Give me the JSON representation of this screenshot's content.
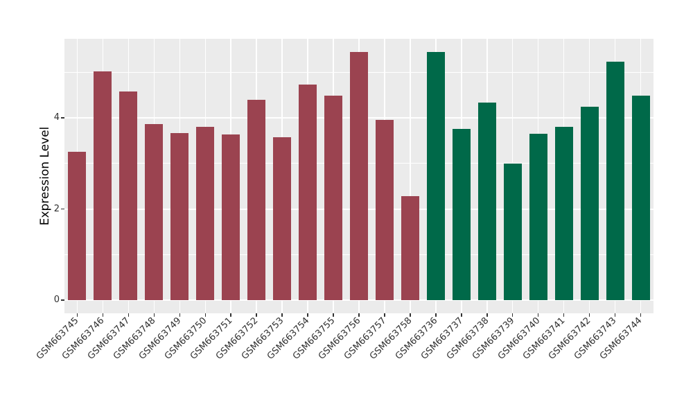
{
  "chart_data": {
    "type": "bar",
    "title": "",
    "xlabel": "",
    "ylabel": "Expression Level",
    "ylim": [
      0,
      5.72
    ],
    "yticks": [
      0,
      2,
      4
    ],
    "yticks_minor": [
      1,
      3,
      5
    ],
    "grid": true,
    "legend_position": "none",
    "categories": [
      "GSM663745",
      "GSM663746",
      "GSM663747",
      "GSM663748",
      "GSM663749",
      "GSM663750",
      "GSM663751",
      "GSM663752",
      "GSM663753",
      "GSM663754",
      "GSM663755",
      "GSM663756",
      "GSM663757",
      "GSM663758",
      "GSM663736",
      "GSM663737",
      "GSM663738",
      "GSM663739",
      "GSM663740",
      "GSM663741",
      "GSM663742",
      "GSM663743",
      "GSM663744"
    ],
    "values": [
      3.25,
      5.02,
      4.58,
      3.86,
      3.67,
      3.81,
      3.63,
      4.4,
      3.58,
      4.73,
      4.49,
      5.44,
      3.96,
      2.28,
      5.44,
      3.76,
      4.34,
      3.0,
      3.65,
      3.81,
      4.25,
      5.23,
      4.48
    ],
    "groups": [
      "red",
      "red",
      "red",
      "red",
      "red",
      "red",
      "red",
      "red",
      "red",
      "red",
      "red",
      "red",
      "red",
      "red",
      "green",
      "green",
      "green",
      "green",
      "green",
      "green",
      "green",
      "green",
      "green"
    ],
    "palette": {
      "red": "#9B4350",
      "green": "#006949"
    },
    "colors": {
      "panel_bg": "#EBEBEB",
      "gridline": "#FFFFFF",
      "tick_text": "#303030",
      "axis_title": "#000000",
      "tick_mark": "#333333"
    }
  }
}
